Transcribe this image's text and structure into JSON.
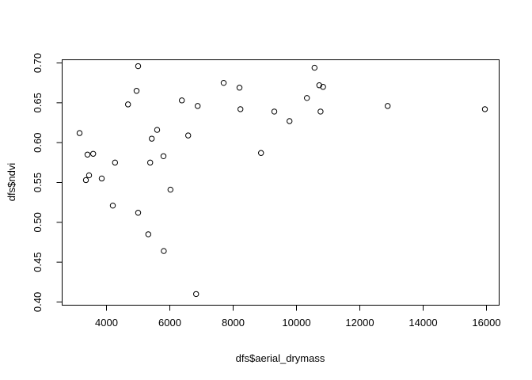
{
  "chart_data": {
    "type": "scatter",
    "title": "",
    "xlabel": "dfs$aerial_drymass",
    "ylabel": "dfs$ndvi",
    "xlim": [
      2600,
      16400
    ],
    "ylim": [
      0.396,
      0.704
    ],
    "x_ticks": [
      {
        "value": 4000,
        "label": "4000"
      },
      {
        "value": 6000,
        "label": "6000"
      },
      {
        "value": 8000,
        "label": "8000"
      },
      {
        "value": 10000,
        "label": "10000"
      },
      {
        "value": 12000,
        "label": "12000"
      },
      {
        "value": 14000,
        "label": "14000"
      },
      {
        "value": 16000,
        "label": "16000"
      }
    ],
    "y_ticks": [
      {
        "value": 0.4,
        "label": "0.40"
      },
      {
        "value": 0.45,
        "label": "0.45"
      },
      {
        "value": 0.5,
        "label": "0.50"
      },
      {
        "value": 0.55,
        "label": "0.55"
      },
      {
        "value": 0.6,
        "label": "0.60"
      },
      {
        "value": 0.65,
        "label": "0.65"
      },
      {
        "value": 0.7,
        "label": "0.70"
      }
    ],
    "grid": false,
    "marker": "open-circle",
    "points": [
      {
        "x": 3150,
        "y": 0.612
      },
      {
        "x": 3350,
        "y": 0.553
      },
      {
        "x": 3400,
        "y": 0.585
      },
      {
        "x": 3450,
        "y": 0.559
      },
      {
        "x": 3580,
        "y": 0.586
      },
      {
        "x": 3850,
        "y": 0.555
      },
      {
        "x": 4200,
        "y": 0.521
      },
      {
        "x": 4270,
        "y": 0.575
      },
      {
        "x": 4680,
        "y": 0.648
      },
      {
        "x": 4950,
        "y": 0.665
      },
      {
        "x": 5000,
        "y": 0.696
      },
      {
        "x": 5000,
        "y": 0.512
      },
      {
        "x": 5320,
        "y": 0.485
      },
      {
        "x": 5380,
        "y": 0.575
      },
      {
        "x": 5430,
        "y": 0.605
      },
      {
        "x": 5600,
        "y": 0.616
      },
      {
        "x": 5800,
        "y": 0.583
      },
      {
        "x": 5810,
        "y": 0.464
      },
      {
        "x": 6020,
        "y": 0.541
      },
      {
        "x": 6380,
        "y": 0.653
      },
      {
        "x": 6580,
        "y": 0.609
      },
      {
        "x": 6830,
        "y": 0.41
      },
      {
        "x": 6880,
        "y": 0.646
      },
      {
        "x": 7700,
        "y": 0.675
      },
      {
        "x": 8200,
        "y": 0.669
      },
      {
        "x": 8230,
        "y": 0.642
      },
      {
        "x": 8880,
        "y": 0.587
      },
      {
        "x": 9300,
        "y": 0.639
      },
      {
        "x": 9780,
        "y": 0.627
      },
      {
        "x": 10330,
        "y": 0.656
      },
      {
        "x": 10570,
        "y": 0.694
      },
      {
        "x": 10720,
        "y": 0.672
      },
      {
        "x": 10760,
        "y": 0.639
      },
      {
        "x": 10840,
        "y": 0.67
      },
      {
        "x": 12880,
        "y": 0.646
      },
      {
        "x": 15950,
        "y": 0.642
      }
    ]
  }
}
